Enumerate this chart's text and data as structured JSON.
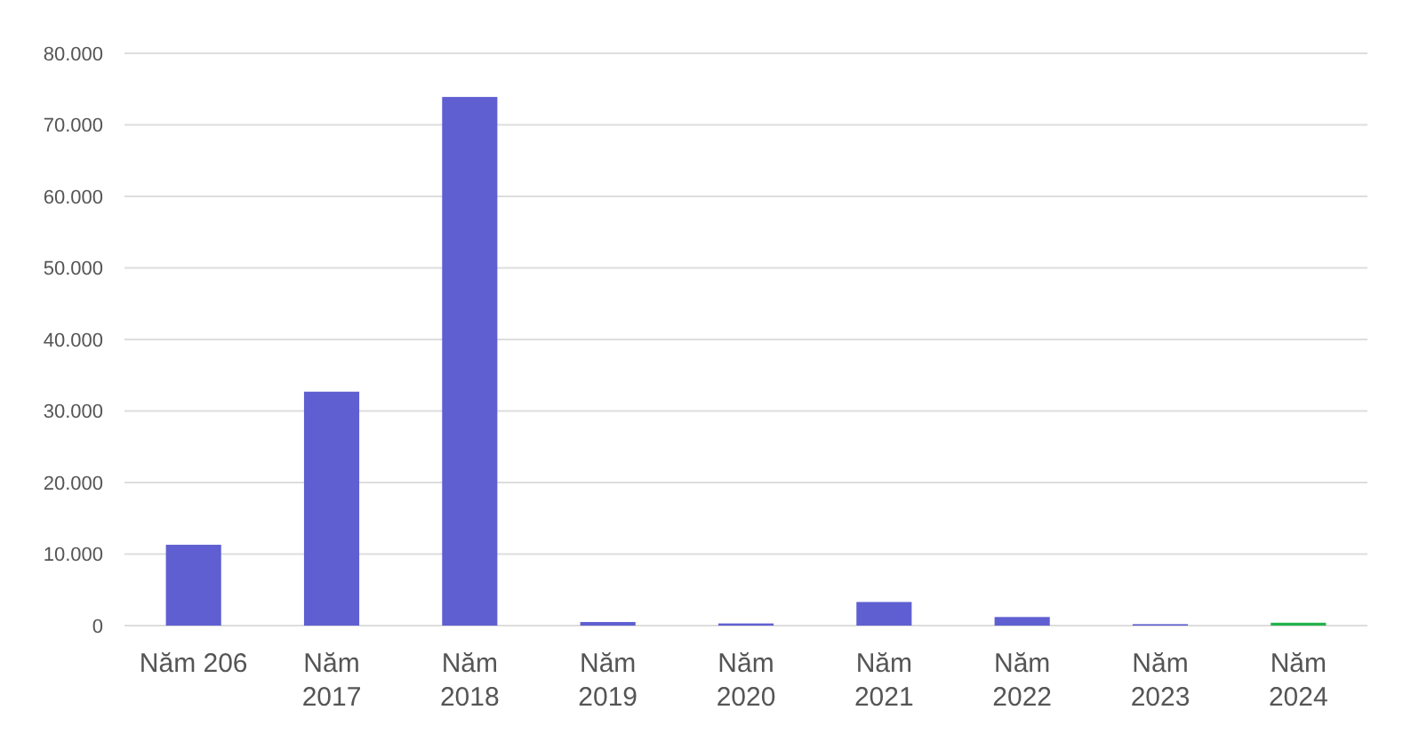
{
  "chart_data": {
    "type": "bar",
    "categories": [
      "Năm 206",
      "Năm 2017",
      "Năm 2018",
      "Năm 2019",
      "Năm 2020",
      "Năm 2021",
      "Năm 2022",
      "Năm 2023",
      "Năm 2024"
    ],
    "values": [
      11300,
      32700,
      73900,
      500,
      300,
      3300,
      1200,
      200,
      400
    ],
    "colors": [
      "#5f5fd2",
      "#5f5fd2",
      "#5f5fd2",
      "#5f5fd2",
      "#5f5fd2",
      "#5f5fd2",
      "#5f5fd2",
      "#5f5fd2",
      "#22b14c"
    ],
    "ylim": [
      0,
      80000
    ],
    "yticks": [
      {
        "value": 0,
        "label": "0"
      },
      {
        "value": 10000,
        "label": "10.000"
      },
      {
        "value": 20000,
        "label": "20.000"
      },
      {
        "value": 30000,
        "label": "30.000"
      },
      {
        "value": 40000,
        "label": "40.000"
      },
      {
        "value": 50000,
        "label": "50.000"
      },
      {
        "value": 60000,
        "label": "60.000"
      },
      {
        "value": 70000,
        "label": "70.000"
      },
      {
        "value": 80000,
        "label": "80.000"
      }
    ],
    "grid": "y"
  }
}
